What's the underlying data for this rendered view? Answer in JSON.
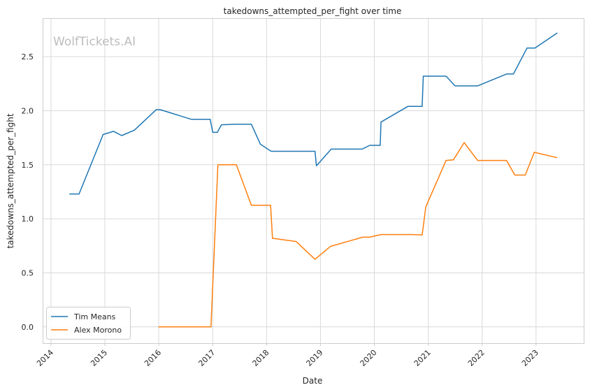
{
  "watermark": "WolfTickets.AI",
  "chart_data": {
    "type": "line",
    "title": "takedowns_attempted_per_fight over time",
    "xlabel": "Date",
    "ylabel": "takedowns_attempted_per_fight",
    "x_type": "date",
    "xlim": [
      "2013-11-10",
      "2023-11-20"
    ],
    "ylim": [
      -0.15,
      2.85
    ],
    "x_ticks": [
      "2014-01-01",
      "2015-01-01",
      "2016-01-01",
      "2017-01-01",
      "2018-01-01",
      "2019-01-01",
      "2020-01-01",
      "2021-01-01",
      "2022-01-01",
      "2023-01-01"
    ],
    "x_tick_labels": [
      "2014",
      "2015",
      "2016",
      "2017",
      "2018",
      "2019",
      "2020",
      "2021",
      "2022",
      "2023"
    ],
    "y_ticks": [
      0.0,
      0.5,
      1.0,
      1.5,
      2.0,
      2.5
    ],
    "y_tick_labels": [
      "0.0",
      "0.5",
      "1.0",
      "1.5",
      "2.0",
      "2.5"
    ],
    "grid": true,
    "legend_position": "lower-left",
    "series": [
      {
        "name": "Tim Means",
        "color": "#1f77b4",
        "points": [
          [
            "2014-05-05",
            1.23
          ],
          [
            "2014-07-10",
            1.23
          ],
          [
            "2014-12-20",
            1.78
          ],
          [
            "2015-03-01",
            1.81
          ],
          [
            "2015-04-25",
            1.77
          ],
          [
            "2015-07-20",
            1.82
          ],
          [
            "2015-12-15",
            2.01
          ],
          [
            "2016-01-10",
            2.01
          ],
          [
            "2016-08-10",
            1.92
          ],
          [
            "2016-12-15",
            1.92
          ],
          [
            "2017-01-01",
            1.8
          ],
          [
            "2017-02-01",
            1.8
          ],
          [
            "2017-03-01",
            1.87
          ],
          [
            "2017-06-01",
            1.875
          ],
          [
            "2017-09-20",
            1.875
          ],
          [
            "2017-11-20",
            1.69
          ],
          [
            "2018-02-01",
            1.625
          ],
          [
            "2018-11-25",
            1.625
          ],
          [
            "2018-12-05",
            1.49
          ],
          [
            "2019-03-15",
            1.645
          ],
          [
            "2019-10-10",
            1.645
          ],
          [
            "2019-12-01",
            1.68
          ],
          [
            "2020-02-10",
            1.68
          ],
          [
            "2020-02-15",
            1.895
          ],
          [
            "2020-08-15",
            2.04
          ],
          [
            "2020-11-20",
            2.04
          ],
          [
            "2020-11-28",
            2.32
          ],
          [
            "2021-05-01",
            2.32
          ],
          [
            "2021-07-01",
            2.23
          ],
          [
            "2021-12-01",
            2.23
          ],
          [
            "2022-06-15",
            2.34
          ],
          [
            "2022-08-01",
            2.34
          ],
          [
            "2022-11-01",
            2.58
          ],
          [
            "2022-12-25",
            2.58
          ],
          [
            "2023-05-25",
            2.72
          ]
        ]
      },
      {
        "name": "Alex Morono",
        "color": "#ff7f0e",
        "points": [
          [
            "2015-12-30",
            0.0
          ],
          [
            "2016-12-20",
            0.0
          ],
          [
            "2017-02-05",
            1.5
          ],
          [
            "2017-06-10",
            1.5
          ],
          [
            "2017-09-20",
            1.125
          ],
          [
            "2018-01-28",
            1.125
          ],
          [
            "2018-02-10",
            0.82
          ],
          [
            "2018-07-20",
            0.79
          ],
          [
            "2018-11-25",
            0.625
          ],
          [
            "2019-03-10",
            0.745
          ],
          [
            "2019-10-15",
            0.83
          ],
          [
            "2019-12-01",
            0.83
          ],
          [
            "2020-02-15",
            0.855
          ],
          [
            "2020-09-15",
            0.855
          ],
          [
            "2020-11-20",
            0.85
          ],
          [
            "2020-12-15",
            1.11
          ],
          [
            "2021-05-01",
            1.54
          ],
          [
            "2021-06-20",
            1.545
          ],
          [
            "2021-09-01",
            1.705
          ],
          [
            "2021-12-01",
            1.54
          ],
          [
            "2022-06-15",
            1.54
          ],
          [
            "2022-08-10",
            1.405
          ],
          [
            "2022-10-20",
            1.405
          ],
          [
            "2022-12-20",
            1.615
          ],
          [
            "2023-05-25",
            1.565
          ]
        ]
      }
    ]
  }
}
